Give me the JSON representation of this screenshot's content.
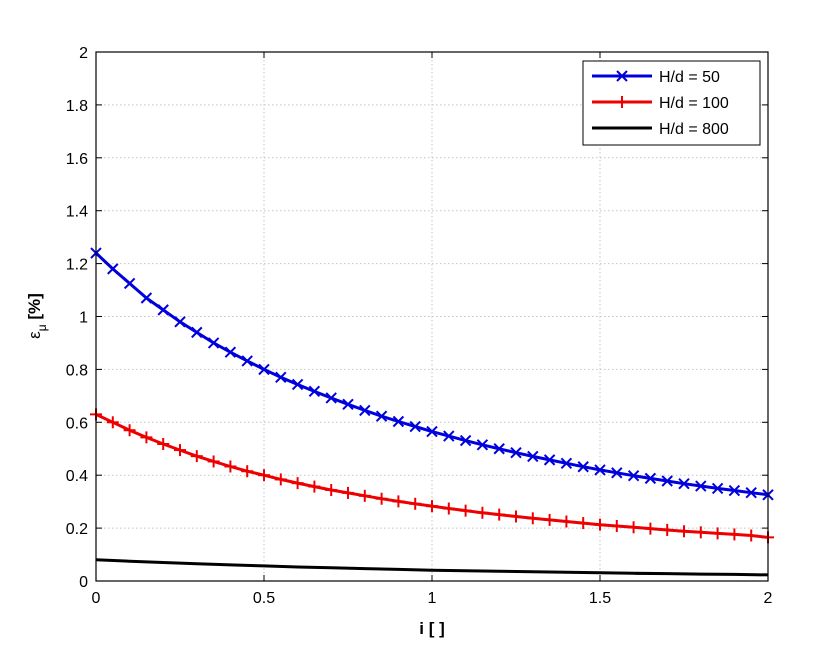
{
  "chart_data": {
    "type": "line",
    "xlabel": "i [ ]",
    "ylabel_main": "ε",
    "ylabel_sub": "μ",
    "ylabel_suffix": " [%]",
    "xlim": [
      0,
      2
    ],
    "ylim": [
      0,
      2
    ],
    "xticks": [
      0,
      0.5,
      1,
      1.5,
      2
    ],
    "xtick_labels": [
      "0",
      "0.5",
      "1",
      "1.5",
      "2"
    ],
    "yticks": [
      0,
      0.2,
      0.4,
      0.6,
      0.8,
      1,
      1.2,
      1.4,
      1.6,
      1.8,
      2
    ],
    "ytick_labels": [
      "0",
      "0.2",
      "0.4",
      "0.6",
      "0.8",
      "1",
      "1.2",
      "1.4",
      "1.6",
      "1.8",
      "2"
    ],
    "grid": true,
    "legend_position": "top-right",
    "series": [
      {
        "name": "H/d = 50",
        "color": "#0000dd",
        "marker": "x",
        "x": [
          0,
          0.05,
          0.1,
          0.15,
          0.2,
          0.25,
          0.3,
          0.35,
          0.4,
          0.45,
          0.5,
          0.55,
          0.6,
          0.65,
          0.7,
          0.75,
          0.8,
          0.85,
          0.9,
          0.95,
          1,
          1.05,
          1.1,
          1.15,
          1.2,
          1.25,
          1.3,
          1.35,
          1.4,
          1.45,
          1.5,
          1.55,
          1.6,
          1.65,
          1.7,
          1.75,
          1.8,
          1.85,
          1.9,
          1.95,
          2
        ],
        "values": [
          1.24,
          1.18,
          1.125,
          1.07,
          1.025,
          0.98,
          0.94,
          0.9,
          0.865,
          0.832,
          0.8,
          0.77,
          0.743,
          0.717,
          0.692,
          0.668,
          0.645,
          0.623,
          0.603,
          0.584,
          0.565,
          0.548,
          0.531,
          0.515,
          0.5,
          0.485,
          0.471,
          0.458,
          0.445,
          0.432,
          0.42,
          0.409,
          0.398,
          0.388,
          0.378,
          0.368,
          0.359,
          0.35,
          0.342,
          0.334,
          0.326
        ]
      },
      {
        "name": "H/d = 100",
        "color": "#ee0000",
        "marker": "+",
        "x": [
          0,
          0.05,
          0.1,
          0.15,
          0.2,
          0.25,
          0.3,
          0.35,
          0.4,
          0.45,
          0.5,
          0.55,
          0.6,
          0.65,
          0.7,
          0.75,
          0.8,
          0.85,
          0.9,
          0.95,
          1,
          1.05,
          1.1,
          1.15,
          1.2,
          1.25,
          1.3,
          1.35,
          1.4,
          1.45,
          1.5,
          1.55,
          1.6,
          1.65,
          1.7,
          1.75,
          1.8,
          1.85,
          1.9,
          1.95,
          2
        ],
        "values": [
          0.63,
          0.6,
          0.57,
          0.543,
          0.518,
          0.495,
          0.472,
          0.452,
          0.433,
          0.415,
          0.4,
          0.384,
          0.37,
          0.357,
          0.344,
          0.333,
          0.322,
          0.311,
          0.301,
          0.292,
          0.283,
          0.274,
          0.266,
          0.258,
          0.251,
          0.244,
          0.237,
          0.231,
          0.225,
          0.219,
          0.213,
          0.208,
          0.203,
          0.198,
          0.193,
          0.188,
          0.184,
          0.18,
          0.176,
          0.172,
          0.165
        ]
      },
      {
        "name": "H/d = 800",
        "color": "#000000",
        "marker": "none",
        "x": [
          0,
          0.1,
          0.2,
          0.3,
          0.4,
          0.5,
          0.6,
          0.7,
          0.8,
          0.9,
          1,
          1.1,
          1.2,
          1.3,
          1.4,
          1.5,
          1.6,
          1.7,
          1.8,
          1.9,
          2
        ],
        "values": [
          0.08,
          0.075,
          0.07,
          0.065,
          0.061,
          0.057,
          0.053,
          0.05,
          0.047,
          0.044,
          0.041,
          0.039,
          0.037,
          0.035,
          0.033,
          0.031,
          0.029,
          0.028,
          0.026,
          0.025,
          0.023
        ]
      }
    ]
  }
}
